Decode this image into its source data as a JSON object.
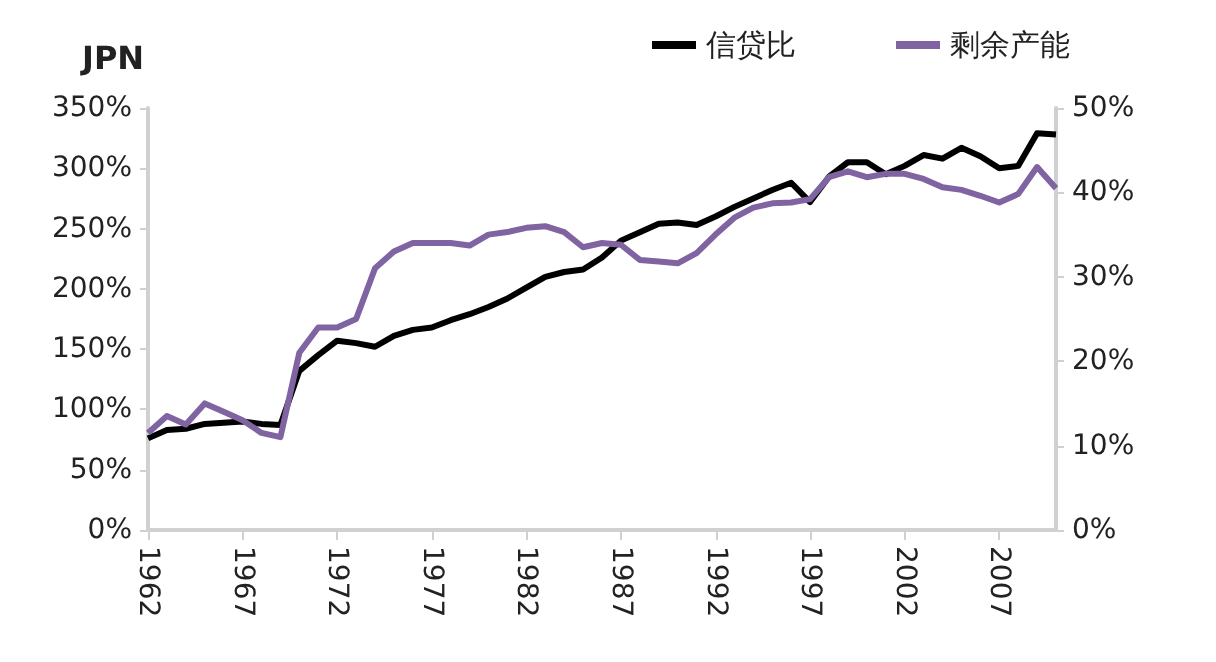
{
  "chart_data": {
    "type": "line",
    "title": "JPN",
    "categories": [
      "1962",
      null,
      null,
      null,
      null,
      "1967",
      null,
      null,
      null,
      null,
      "1972",
      null,
      null,
      null,
      null,
      "1977",
      null,
      null,
      null,
      null,
      "1982",
      null,
      null,
      null,
      null,
      "1987",
      null,
      null,
      null,
      null,
      "1992",
      null,
      null,
      null,
      null,
      "1997",
      null,
      null,
      null,
      null,
      "2002",
      null,
      null,
      null,
      null,
      "2007",
      null,
      null,
      null
    ],
    "series": [
      {
        "name": "信贷比",
        "color": "#000000",
        "values": [
          76,
          83,
          84,
          88,
          89,
          90,
          88,
          87,
          132,
          145,
          157,
          155,
          152,
          161,
          166,
          168,
          174,
          179,
          185,
          192,
          201,
          210,
          214,
          216,
          226,
          240,
          247,
          254,
          255,
          253,
          260,
          268,
          275,
          282,
          288,
          272,
          293,
          305,
          305,
          295,
          302,
          311,
          308,
          317,
          310,
          300,
          302,
          329,
          328
        ]
      },
      {
        "name": "剩余产能",
        "color": "#8064a2",
        "axis": "y2",
        "values": [
          11.5,
          13.5,
          12.5,
          15,
          14,
          13,
          11.5,
          11,
          21,
          24,
          24,
          25,
          31,
          33,
          34,
          34,
          34,
          33.7,
          35,
          35.3,
          35.8,
          36,
          35.3,
          33.5,
          34,
          33.8,
          32,
          31.8,
          31.6,
          32.8,
          35,
          37,
          38.2,
          38.7,
          38.8,
          39.2,
          41.8,
          42.5,
          41.8,
          42.2,
          42.2,
          41.6,
          40.6,
          40.3,
          39.6,
          38.8,
          39.8,
          43,
          40.5
        ]
      }
    ],
    "ylim": [
      0,
      350
    ],
    "yticks": [
      {
        "value": 0,
        "label": "0%"
      },
      {
        "value": 50,
        "label": "50%"
      },
      {
        "value": 100,
        "label": "100%"
      },
      {
        "value": 150,
        "label": "150%"
      },
      {
        "value": 200,
        "label": "200%"
      },
      {
        "value": 250,
        "label": "250%"
      },
      {
        "value": 300,
        "label": "300%"
      },
      {
        "value": 350,
        "label": "350%"
      }
    ],
    "y2lim": [
      0,
      50
    ],
    "y2ticks": [
      {
        "value": 0,
        "label": "0%"
      },
      {
        "value": 10,
        "label": "10%"
      },
      {
        "value": 20,
        "label": "20%"
      },
      {
        "value": 30,
        "label": "30%"
      },
      {
        "value": 40,
        "label": "40%"
      },
      {
        "value": 50,
        "label": "50%"
      }
    ],
    "legend": "top right",
    "grid": false,
    "marker": "none",
    "line_style": "solid"
  }
}
